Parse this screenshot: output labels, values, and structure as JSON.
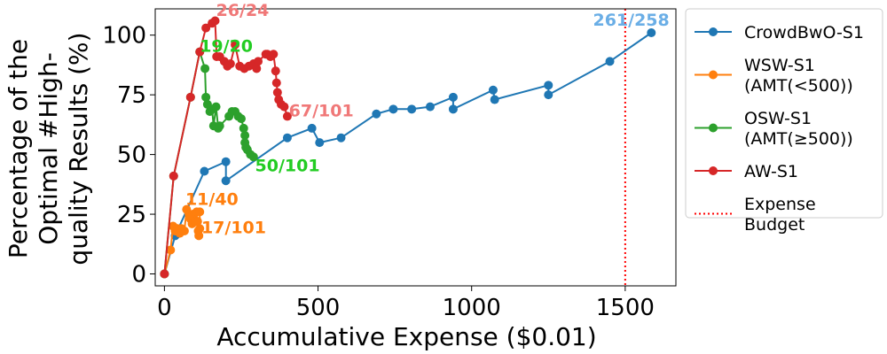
{
  "chart_data": {
    "type": "line",
    "xlabel": "Accumulative Expense ($0.01)",
    "ylabel_lines": [
      "Percentage of the",
      "Optimal #High-",
      "quality Results (%)"
    ],
    "xlim": [
      -30,
      1665
    ],
    "ylim": [
      -5,
      111
    ],
    "xticks": [
      0,
      500,
      1000,
      1500
    ],
    "yticks": [
      0,
      25,
      50,
      75,
      100
    ],
    "grid": false,
    "legend_position": "outside-right",
    "series": [
      {
        "name": "CrowdBwO-S1",
        "color": "#1f77b4",
        "x": [
          0,
          35,
          130,
          200,
          200,
          400,
          480,
          505,
          575,
          690,
          745,
          805,
          865,
          940,
          940,
          1070,
          1075,
          1250,
          1250,
          1450,
          1585
        ],
        "y": [
          0,
          16,
          43,
          47,
          39,
          57,
          61,
          55,
          57,
          67,
          69,
          69,
          70,
          74,
          69,
          77,
          73,
          79,
          75,
          89,
          101
        ]
      },
      {
        "name": "WSW-S1",
        "name_lines": [
          "WSW-S1",
          "(AMT(<500))"
        ],
        "color": "#ff7f0e",
        "x": [
          0,
          20,
          28,
          35,
          42,
          50,
          55,
          65,
          72,
          80,
          85,
          90,
          92,
          95,
          100,
          105,
          108,
          110,
          112,
          115,
          115
        ],
        "y": [
          0,
          10,
          20,
          18,
          19,
          17,
          19,
          18,
          27,
          25,
          23,
          21,
          25,
          24,
          22,
          26,
          22,
          18,
          16,
          19,
          26
        ]
      },
      {
        "name": "OSW-S1",
        "name_lines": [
          "OSW-S1",
          "(AMT(≥500))"
        ],
        "color": "#2ca02c",
        "x": [
          0,
          30,
          85,
          115,
          132,
          135,
          140,
          148,
          155,
          160,
          168,
          175,
          180,
          210,
          220,
          230,
          240,
          250,
          258,
          262,
          262,
          265,
          270,
          280,
          290
        ],
        "y": [
          0,
          41,
          74,
          93,
          86,
          74,
          71,
          68,
          69,
          62,
          70,
          61,
          62,
          66,
          68,
          68,
          66,
          65,
          61,
          58,
          55,
          53,
          52,
          50,
          49
        ]
      },
      {
        "name": "AW-S1",
        "color": "#d62728",
        "x": [
          0,
          30,
          85,
          115,
          135,
          155,
          165,
          170,
          180,
          195,
          205,
          215,
          230,
          245,
          260,
          275,
          290,
          300,
          305,
          330,
          335,
          345,
          355,
          362,
          365,
          368,
          372,
          380,
          390,
          400
        ],
        "y": [
          0,
          41,
          74,
          93,
          103,
          105,
          106,
          91,
          91,
          89,
          87,
          88,
          96,
          87,
          86,
          87,
          88,
          86,
          89,
          92,
          92,
          91,
          92,
          85,
          80,
          76,
          73,
          71,
          70,
          66
        ]
      }
    ],
    "annotations": [
      {
        "text": "261/258",
        "x": 1395,
        "y": 104,
        "color": "#6aaee6"
      },
      {
        "text": "26/24",
        "x": 168,
        "y": 108,
        "color": "#f07878"
      },
      {
        "text": "19/20",
        "x": 115,
        "y": 93,
        "color": "#22cc22"
      },
      {
        "text": "67/101",
        "x": 405,
        "y": 66,
        "color": "#f07878"
      },
      {
        "text": "50/101",
        "x": 295,
        "y": 43,
        "color": "#22cc22"
      },
      {
        "text": "11/40",
        "x": 68,
        "y": 29,
        "color": "#ff7f0e"
      },
      {
        "text": "17/101",
        "x": 120,
        "y": 17,
        "color": "#ff7f0e"
      }
    ],
    "budget_line": {
      "label_lines": [
        "Expense",
        "Budget"
      ],
      "x": 1500,
      "color": "#ff0000"
    }
  }
}
